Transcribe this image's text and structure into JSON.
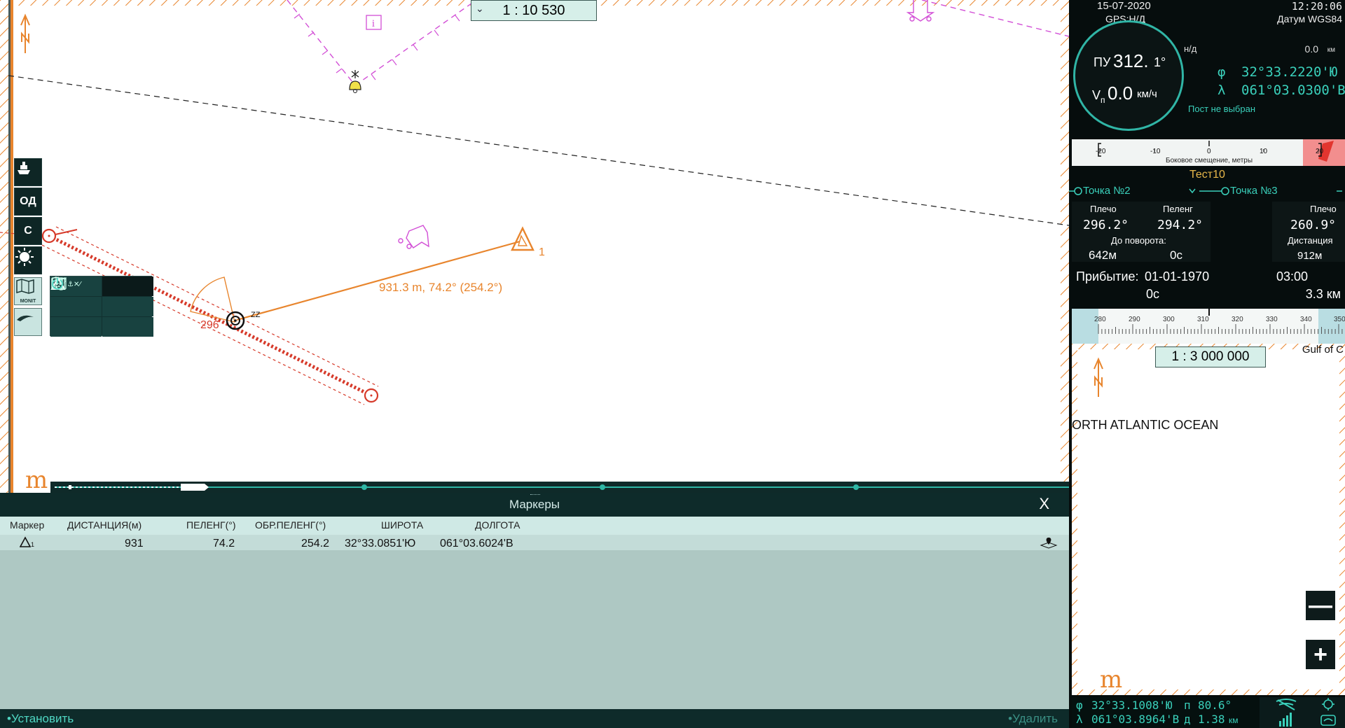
{
  "main_chart": {
    "scale": "1 :  10 530",
    "route_label": "931.3 m, 74.2° (254.2°)",
    "bearing_label": "296",
    "vessel_label": "ZZ",
    "marker_index": "1",
    "icons": [
      "north-arrow-icon",
      "info-icon",
      "bell-buoy-icon",
      "vessel-icon",
      "triangle-marker-icon",
      "anchor-icon"
    ],
    "colors": {
      "route": "#e8852d",
      "danger": "#d63a2a",
      "magenta": "#d24fd6"
    }
  },
  "toolbar": {
    "btn_od": "ОД",
    "btn_s": "С",
    "btn_monit": "MONIT"
  },
  "markers": {
    "title": "Маркеры",
    "close": "X",
    "columns": [
      "Маркер",
      "ДИСТАНЦИЯ(м)",
      "ПЕЛЕНГ(°)",
      "ОБР.ПЕЛЕНГ(°)",
      "ШИРОТА",
      "ДОЛГОТА"
    ],
    "rows": [
      {
        "marker": "1",
        "distance": "931",
        "bearing": "74.2",
        "reverse_bearing": "254.2",
        "lat": "32°33.0851'Ю",
        "lon": "061°03.6024'В"
      }
    ],
    "set_label": "•Установить",
    "delete_label": "•Удалить"
  },
  "nav": {
    "date": "15-07-2020",
    "time": "12:20:06",
    "gps": "GPS:Н/Д",
    "datum": "Датум WGS84",
    "heading_label": "ПУ",
    "heading": "312.",
    "heading_dec": "1°",
    "speed_label": "V",
    "speed_sub": "п",
    "speed": "0.0",
    "speed_unit": "км/ч",
    "nd": "н/д",
    "dist": "0.0",
    "dist_unit": "км",
    "lat_sym": "φ",
    "lat": "32°33.2220'Ю",
    "lon_sym": "λ",
    "lon": "061°03.0300'В",
    "post": "Пост не выбран"
  },
  "xte": {
    "ticks": [
      "-20",
      "-10",
      "0",
      "10",
      "20"
    ],
    "label": "Боковое смещение, метры"
  },
  "route": {
    "name": "Тест10",
    "from_point": "Точка №2",
    "to_point": "Точка №3",
    "arm_label": "Плечо",
    "bearing_label": "Пеленг",
    "arm_from": "296.2°",
    "bearing": "294.2°",
    "to_turn_label": "До поворота:",
    "to_turn_dist": "642м",
    "to_turn_time": "0с",
    "arm_to_label": "Плечо",
    "arm_to": "260.9°",
    "distance_label": "Дистанция",
    "distance": "912м",
    "arrival_label": "Прибытие:",
    "arrival_date": "01-01-1970",
    "arrival_time": "03:00",
    "remain_time": "0с",
    "remain_dist": "3.3 км"
  },
  "heading_tape": {
    "ticks": [
      "280",
      "290",
      "300",
      "310",
      "320",
      "330",
      "340",
      "350"
    ]
  },
  "overview": {
    "scale": "1 : 3 000 000",
    "ocean_label": "ORTH ATLANTIC OCEAN",
    "gulf_label": "Gulf of C",
    "zoom_out": "—",
    "zoom_in": "+"
  },
  "status": {
    "lat_sym": "φ",
    "lat": "32°33.1008'Ю",
    "lon_sym": "λ",
    "lon": "061°03.8964'В",
    "p_label": "п",
    "p_value": "80.6°",
    "d_label": "д",
    "d_value": "1.38",
    "d_unit": "км"
  }
}
